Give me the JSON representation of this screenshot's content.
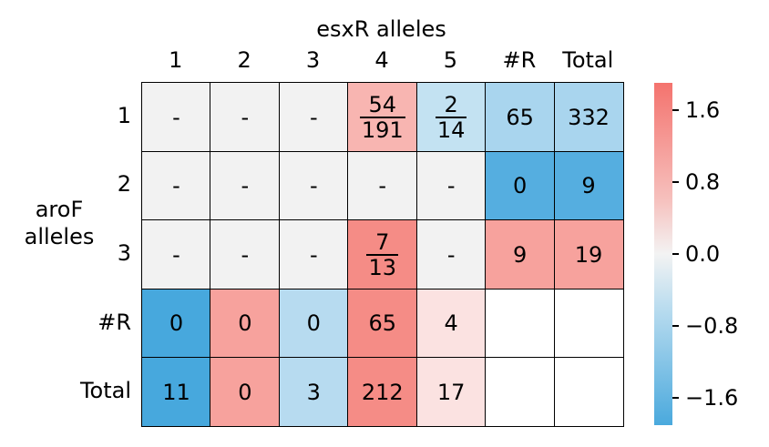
{
  "chart_data": {
    "type": "heatmap",
    "xlabel": "esxR alleles",
    "ylabel": "aroF alleles",
    "col_labels": [
      "1",
      "2",
      "3",
      "4",
      "5",
      "#R",
      "Total"
    ],
    "row_labels": [
      "1",
      "2",
      "3",
      "#R",
      "Total"
    ],
    "cells": [
      [
        {
          "text": "-",
          "color": "#f2f2f2"
        },
        {
          "text": "-",
          "color": "#f2f2f2"
        },
        {
          "text": "-",
          "color": "#f2f2f2"
        },
        {
          "num": "54",
          "den": "191",
          "color": "#f8b5b1"
        },
        {
          "num": "2",
          "den": "14",
          "color": "#c3e2f2"
        },
        {
          "text": "65",
          "color": "#a9d5ee"
        },
        {
          "text": "332",
          "color": "#a9d5ee"
        }
      ],
      [
        {
          "text": "-",
          "color": "#f2f2f2"
        },
        {
          "text": "-",
          "color": "#f2f2f2"
        },
        {
          "text": "-",
          "color": "#f2f2f2"
        },
        {
          "text": "-",
          "color": "#f2f2f2"
        },
        {
          "text": "-",
          "color": "#f2f2f2"
        },
        {
          "text": "0",
          "color": "#55aee0"
        },
        {
          "text": "9",
          "color": "#55aee0"
        }
      ],
      [
        {
          "text": "-",
          "color": "#f2f2f2"
        },
        {
          "text": "-",
          "color": "#f2f2f2"
        },
        {
          "text": "-",
          "color": "#f2f2f2"
        },
        {
          "num": "7",
          "den": "13",
          "color": "#f58c86"
        },
        {
          "text": "-",
          "color": "#f2f2f2"
        },
        {
          "text": "9",
          "color": "#f7a29d"
        },
        {
          "text": "19",
          "color": "#f7a29d"
        }
      ],
      [
        {
          "text": "0",
          "color": "#47a8dd"
        },
        {
          "text": "0",
          "color": "#f7a29d"
        },
        {
          "text": "0",
          "color": "#b7dbf0"
        },
        {
          "text": "65",
          "color": "#f58c86"
        },
        {
          "text": "4",
          "color": "#fbe2e1"
        },
        {
          "text": "",
          "color": "#ffffff"
        },
        {
          "text": "",
          "color": "#ffffff"
        }
      ],
      [
        {
          "text": "11",
          "color": "#47a8dd"
        },
        {
          "text": "0",
          "color": "#f7a29d"
        },
        {
          "text": "3",
          "color": "#b7dbf0"
        },
        {
          "text": "212",
          "color": "#f58c86"
        },
        {
          "text": "17",
          "color": "#fbe2e1"
        },
        {
          "text": "",
          "color": "#ffffff"
        },
        {
          "text": "",
          "color": "#ffffff"
        }
      ]
    ],
    "colorbar": {
      "ticks": [
        "1.6",
        "0.8",
        "0.0",
        "−0.8",
        "−1.6"
      ],
      "range": [
        -1.9,
        1.9
      ],
      "colors": [
        "#f4736e",
        "#f3f3f3",
        "#4aa9dd"
      ]
    }
  }
}
